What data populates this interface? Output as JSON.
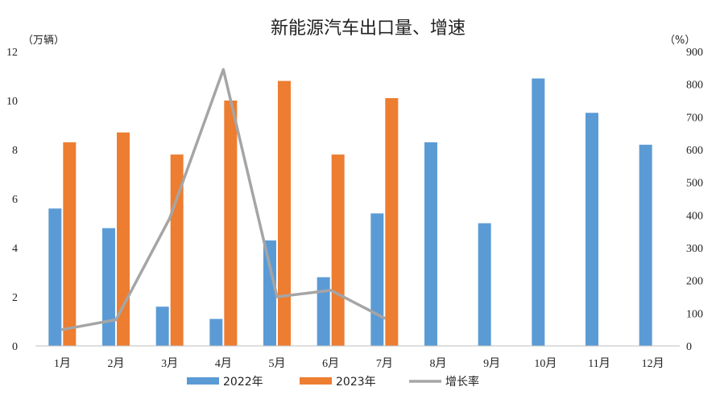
{
  "chart_data": {
    "type": "bar",
    "title": "新能源汽车出口量、增速",
    "y_left_unit": "（万辆）",
    "y_right_unit": "（%）",
    "categories": [
      "1月",
      "2月",
      "3月",
      "4月",
      "5月",
      "6月",
      "7月",
      "8月",
      "9月",
      "10月",
      "11月",
      "12月"
    ],
    "ylim_left": [
      0,
      12
    ],
    "yticks_left": [
      "0",
      "2",
      "4",
      "6",
      "8",
      "10",
      "12"
    ],
    "ylim_right": [
      0,
      900
    ],
    "yticks_right": [
      "0",
      "100",
      "200",
      "300",
      "400",
      "500",
      "600",
      "700",
      "800",
      "900"
    ],
    "series": [
      {
        "name": "2022年",
        "type": "bar",
        "axis": "left",
        "color": "#5b9bd5",
        "values": [
          5.6,
          4.8,
          1.6,
          1.1,
          4.3,
          2.8,
          5.4,
          8.3,
          5.0,
          10.9,
          9.5,
          8.2
        ]
      },
      {
        "name": "2023年",
        "type": "bar",
        "axis": "left",
        "color": "#ed7d31",
        "values": [
          8.3,
          8.7,
          7.8,
          10.0,
          10.8,
          7.8,
          10.1,
          null,
          null,
          null,
          null,
          null
        ]
      },
      {
        "name": "增长率",
        "type": "line",
        "axis": "right",
        "color": "#a5a5a5",
        "values": [
          50,
          80,
          390,
          845,
          150,
          170,
          85,
          null,
          null,
          null,
          null,
          null
        ]
      }
    ],
    "legend_position": "bottom",
    "grid": false
  }
}
